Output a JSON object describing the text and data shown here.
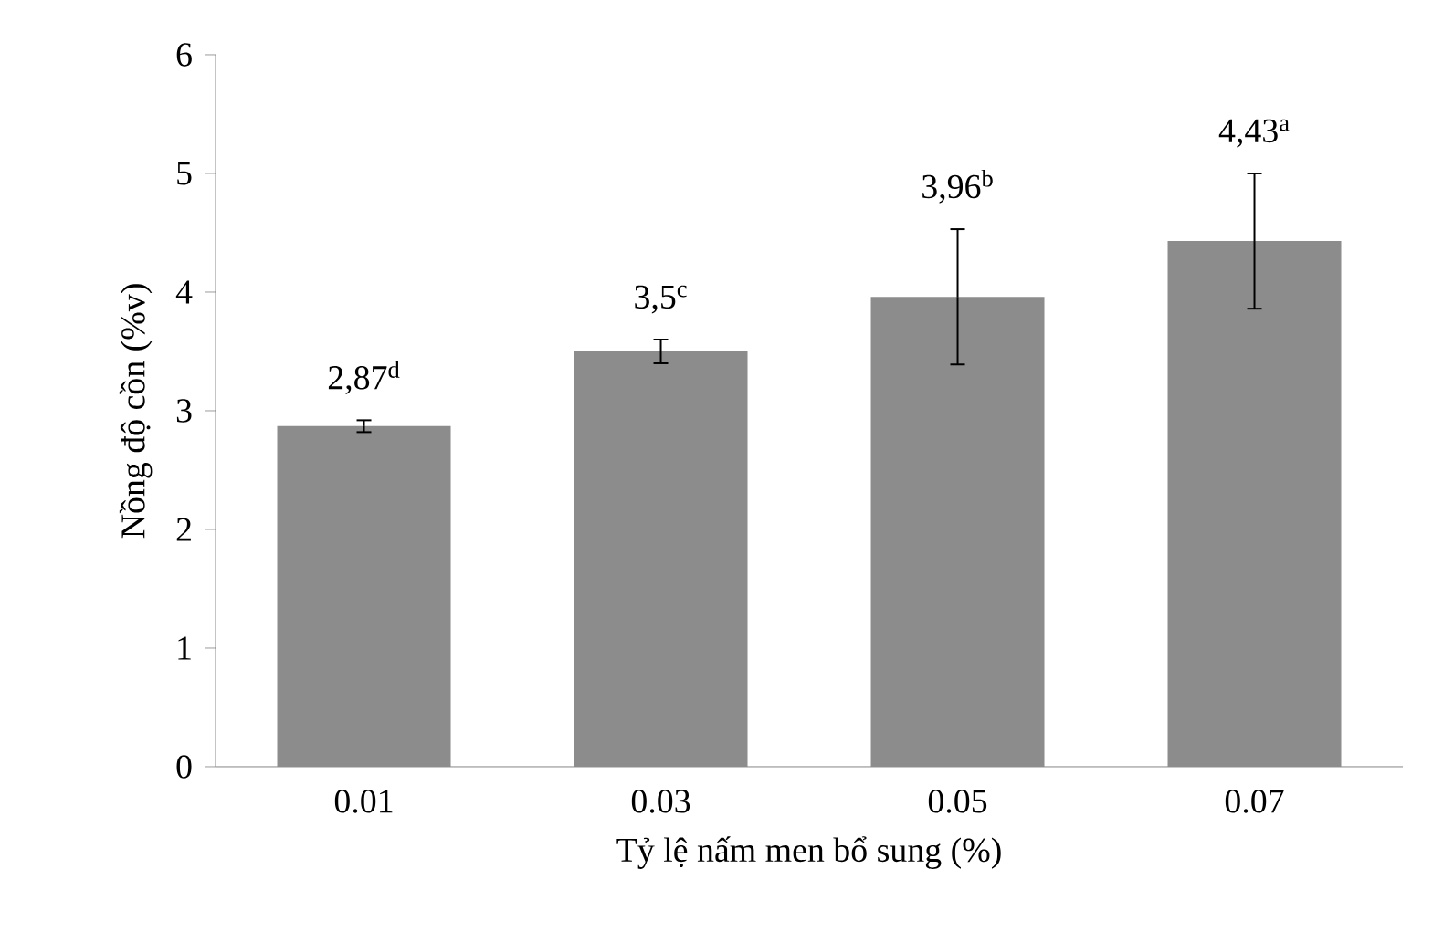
{
  "chart_data": {
    "type": "bar",
    "xlabel": "Tỷ lệ nấm men bổ sung (%)",
    "ylabel": "Nồng độ cồn (%v)",
    "categories": [
      "0.01",
      "0.03",
      "0.05",
      "0.07"
    ],
    "values": [
      2.87,
      3.5,
      3.96,
      4.43
    ],
    "color": "#8c8c8c",
    "errors": [
      0.05,
      0.1,
      0.57,
      0.57
    ],
    "value_labels": [
      "2,87$^{d}$",
      "3,5$^{c}$",
      "3,96$^{b}$",
      "4,43$^{a}$"
    ],
    "ylim": [
      0,
      6
    ],
    "yticks": [
      0,
      1,
      2,
      3,
      4,
      5,
      6
    ]
  }
}
